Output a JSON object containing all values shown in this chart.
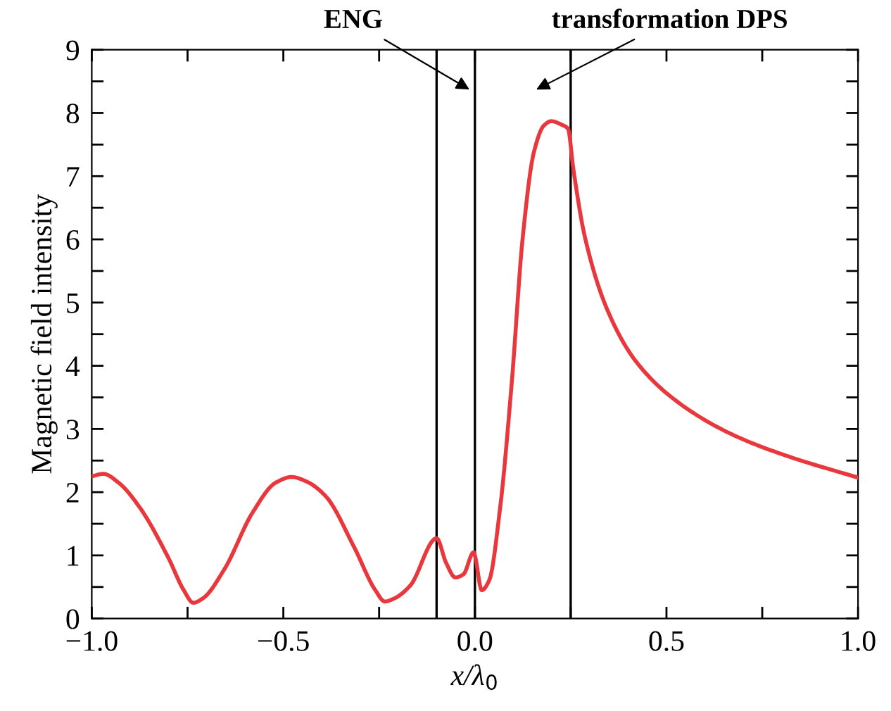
{
  "chart_data": {
    "type": "line",
    "xlabel": "x/λ$_{0}$",
    "ylabel": "Magnetic field intensity",
    "x": [
      -1.0,
      -0.97,
      -0.93,
      -0.875,
      -0.8,
      -0.76,
      -0.735,
      -0.71,
      -0.654,
      -0.58,
      -0.52,
      -0.478,
      -0.44,
      -0.39,
      -0.316,
      -0.26,
      -0.235,
      -0.21,
      -0.169,
      -0.1,
      -0.075,
      -0.051,
      -0.03,
      -0.003,
      0.0,
      0.018,
      0.037,
      0.066,
      0.096,
      0.125,
      0.154,
      0.18,
      0.199,
      0.228,
      0.243,
      0.257,
      0.287,
      0.346,
      0.419,
      0.522,
      0.669,
      0.816,
      1.0
    ],
    "series": [
      {
        "color": "#e8383d",
        "values": [
          2.25,
          2.29,
          2.15,
          1.76,
          0.96,
          0.45,
          0.25,
          0.32,
          0.78,
          1.68,
          2.15,
          2.24,
          2.17,
          1.94,
          1.14,
          0.45,
          0.27,
          0.32,
          0.52,
          1.27,
          0.88,
          0.65,
          0.7,
          1.05,
          1.0,
          0.45,
          0.6,
          1.76,
          3.72,
          6.04,
          7.38,
          7.8,
          7.87,
          7.81,
          7.75,
          7.11,
          6.04,
          4.88,
          4.08,
          3.46,
          2.92,
          2.57,
          2.23
        ]
      }
    ],
    "xlim": [
      -1.0,
      1.0
    ],
    "xticks": [
      {
        "value": -1.0,
        "label": "−1.0"
      },
      {
        "value": -0.75,
        "label": null
      },
      {
        "value": -0.5,
        "label": "−0.5"
      },
      {
        "value": -0.25,
        "label": null
      },
      {
        "value": 0.0,
        "label": "0.0"
      },
      {
        "value": 0.25,
        "label": null
      },
      {
        "value": 0.5,
        "label": "0.5"
      },
      {
        "value": 0.75,
        "label": null
      },
      {
        "value": 1.0,
        "label": "1.0"
      }
    ],
    "ylim": [
      0,
      9
    ],
    "yticks": [
      0,
      {
        "value": 0.5,
        "label": null
      },
      1,
      {
        "value": 1.5,
        "label": null
      },
      2,
      {
        "value": 2.5,
        "label": null
      },
      3,
      {
        "value": 3.5,
        "label": null
      },
      4,
      {
        "value": 4.5,
        "label": null
      },
      5,
      {
        "value": 5.5,
        "label": null
      },
      6,
      {
        "value": 6.5,
        "label": null
      },
      7,
      {
        "value": 7.5,
        "label": null
      },
      8,
      {
        "value": 8.5,
        "label": null
      },
      9
    ],
    "ref_lines": [
      {
        "axis": "x",
        "value": -0.1,
        "color": "#000000"
      },
      {
        "axis": "x",
        "value": 0.0,
        "color": "#000000"
      },
      {
        "axis": "x",
        "value": 0.25,
        "color": "#000000"
      }
    ],
    "annotations": [
      "ENG",
      "transformation DPS"
    ],
    "grid": false,
    "legend": false,
    "marker": "none",
    "line_style": "solid"
  }
}
